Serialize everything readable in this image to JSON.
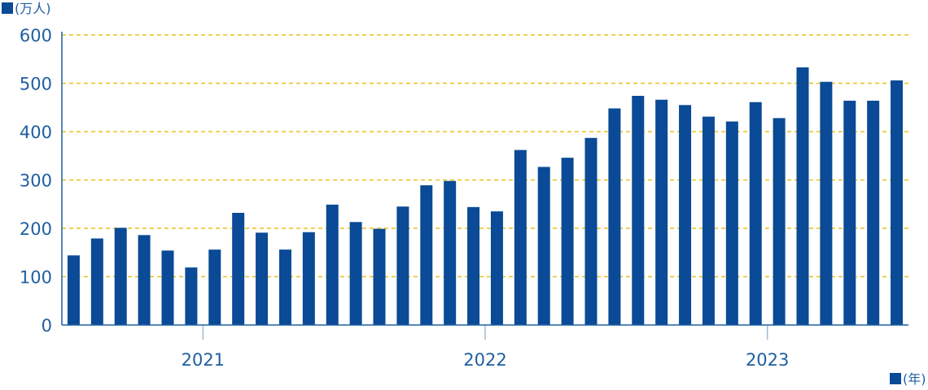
{
  "chart_data": {
    "type": "bar",
    "y_unit_label": "(万人)",
    "x_unit_label": "(年)",
    "title": "",
    "xlabel": "",
    "ylabel": "",
    "ylim": [
      0,
      600
    ],
    "y_ticks": [
      0,
      100,
      200,
      300,
      400,
      500,
      600
    ],
    "year_labels": [
      {
        "label": "2021",
        "after_bar_index": 5
      },
      {
        "label": "2022",
        "after_bar_index": 17
      },
      {
        "label": "2023",
        "after_bar_index": 29
      }
    ],
    "grid": true,
    "colors": {
      "bar": "#0a4a96",
      "grid": "#e8c21b",
      "axis": "#1f5fa0",
      "text": "#1f5fa0",
      "tick_mark": "#9fb9d6"
    },
    "values": [
      144,
      179,
      201,
      186,
      154,
      119,
      156,
      232,
      191,
      156,
      192,
      249,
      213,
      199,
      245,
      289,
      298,
      244,
      235,
      362,
      327,
      346,
      387,
      448,
      474,
      466,
      455,
      431,
      421,
      461,
      428,
      533,
      503,
      464,
      464,
      506
    ]
  }
}
